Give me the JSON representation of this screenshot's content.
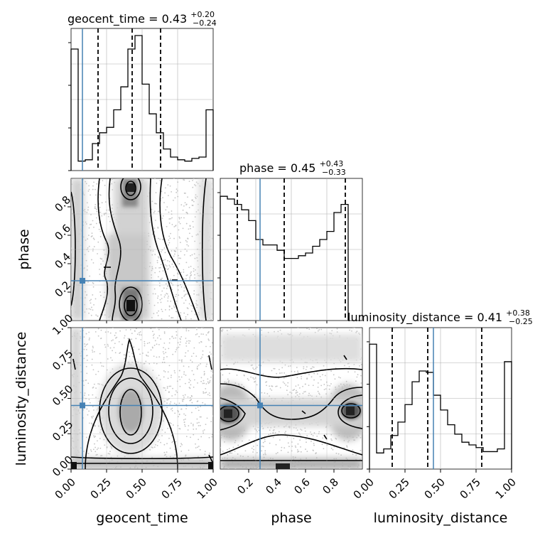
{
  "titles": {
    "geocent_time": {
      "prefix": "geocent_time = 0.43",
      "sup": "+0.20",
      "sub": "−0.24"
    },
    "phase": {
      "prefix": "phase = 0.45",
      "sup": "+0.43",
      "sub": "−0.33"
    },
    "luminosity_distance": {
      "prefix": "luminosity_distance = 0.41",
      "sup": "+0.38",
      "sub": "−0.25"
    }
  },
  "axis_labels": {
    "x1": "geocent_time",
    "x2": "phase",
    "x3": "luminosity_distance",
    "y2": "phase",
    "y3": "luminosity_distance"
  },
  "colors": {
    "truth": "#4682b4",
    "hist": "#000000",
    "grid": "#b0b0b0"
  },
  "chart_data": {
    "type": "corner",
    "parameters": [
      "geocent_time",
      "phase",
      "luminosity_distance"
    ],
    "truths": {
      "geocent_time": 0.08,
      "phase": 0.28,
      "luminosity_distance": 0.45
    },
    "quantiles": {
      "geocent_time": [
        0.19,
        0.43,
        0.63
      ],
      "phase": [
        0.12,
        0.45,
        0.88
      ],
      "luminosity_distance": [
        0.16,
        0.41,
        0.79
      ]
    },
    "ranges": {
      "geocent_time": [
        0.0,
        1.0
      ],
      "phase": [
        0.0,
        1.0
      ],
      "luminosity_distance": [
        0.0,
        1.0
      ]
    },
    "hist_geocent_time": {
      "edges_from": 0.0,
      "edges_to": 1.0,
      "values": [
        0.9,
        0.07,
        0.08,
        0.2,
        0.28,
        0.32,
        0.45,
        0.62,
        0.9,
        1.0,
        0.64,
        0.42,
        0.28,
        0.16,
        0.1,
        0.08,
        0.07,
        0.09,
        0.1,
        0.45
      ]
    },
    "hist_phase": {
      "edges_from": 0.0,
      "edges_to": 0.9,
      "values": [
        0.92,
        0.9,
        0.86,
        0.82,
        0.74,
        0.6,
        0.56,
        0.56,
        0.52,
        0.46,
        0.46,
        0.48,
        0.5,
        0.55,
        0.6,
        0.66,
        0.8,
        0.86
      ]
    },
    "hist_luminosity_distance": {
      "edges_from": 0.0,
      "edges_to": 1.0,
      "values": [
        0.93,
        0.12,
        0.15,
        0.25,
        0.35,
        0.48,
        0.65,
        0.73,
        0.72,
        0.55,
        0.44,
        0.33,
        0.26,
        0.2,
        0.18,
        0.16,
        0.13,
        0.13,
        0.15,
        0.8
      ]
    },
    "ticks_geocent_time": [
      0.0,
      0.25,
      0.5,
      0.75,
      1.0
    ],
    "ticks_phase": [
      0.2,
      0.4,
      0.6,
      0.8
    ],
    "ticks_luminosity_distance": [
      0.0,
      0.25,
      0.5,
      0.75,
      1.0
    ],
    "tick_labels_geocent_time": [
      "0.00",
      "0.25",
      "0.50",
      "0.75",
      "1.00"
    ],
    "tick_labels_phase": [
      "0.2",
      "0.4",
      "0.6",
      "0.8"
    ],
    "tick_labels_luminosity_distance": [
      "0.00",
      "0.25",
      "0.50",
      "0.75",
      "1.00"
    ],
    "grid": true
  }
}
